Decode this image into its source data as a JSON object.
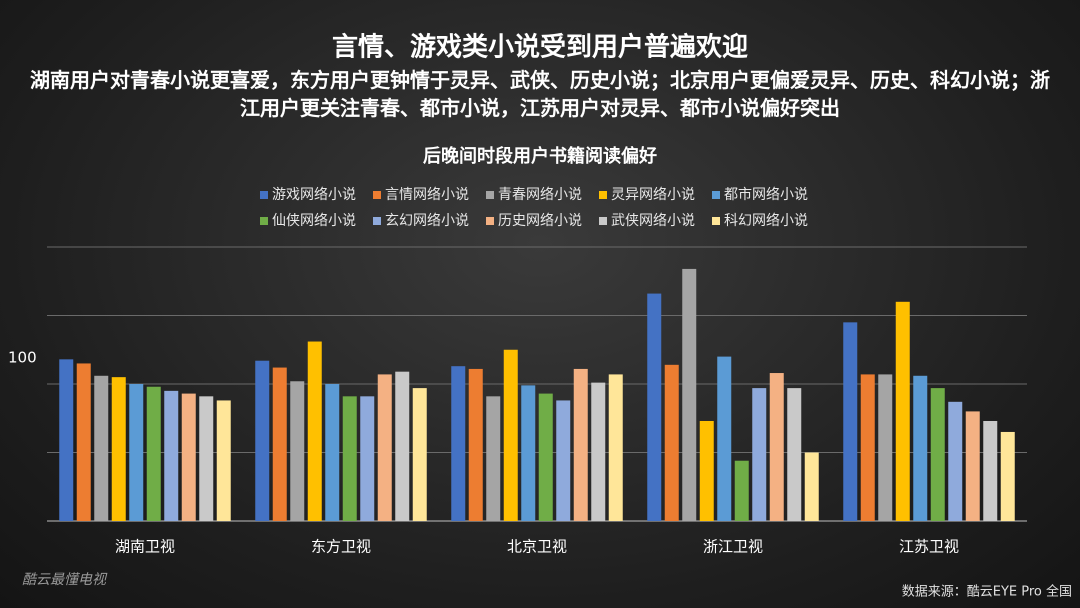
{
  "title": "言情、游戏类小说受到用户普遍欢迎",
  "subtitle": "湖南用户对青春小说更喜爱，东方用户更钟情于灵异、武侠、历史小说；北京用户更偏爱灵异、历史、科幻小说；浙江用户更关注青春、都市小说，江苏用户对灵异、都市小说偏好突出",
  "watermark": "酷云最懂电视",
  "source": "数据来源：酷云EYE Pro  全国",
  "chart_data": {
    "type": "bar",
    "title": "后晚间时段用户书籍阅读偏好",
    "categories": [
      "湖南卫视",
      "东方卫视",
      "北京卫视",
      "浙江卫视",
      "江苏卫视"
    ],
    "series": [
      {
        "name": "游戏网络小说",
        "color": "#4472c4",
        "values": [
          118,
          117,
          113,
          166,
          145
        ]
      },
      {
        "name": "言情网络小说",
        "color": "#ed7d31",
        "values": [
          115,
          112,
          111,
          114,
          107
        ]
      },
      {
        "name": "青春网络小说",
        "color": "#a5a5a5",
        "values": [
          106,
          102,
          91,
          184,
          107
        ]
      },
      {
        "name": "灵异网络小说",
        "color": "#ffc000",
        "values": [
          105,
          131,
          125,
          73,
          160
        ]
      },
      {
        "name": "都市网络小说",
        "color": "#5b9bd5",
        "values": [
          100,
          100,
          99,
          120,
          106
        ]
      },
      {
        "name": "仙侠网络小说",
        "color": "#70ad47",
        "values": [
          98,
          91,
          93,
          44,
          97
        ]
      },
      {
        "name": "玄幻网络小说",
        "color": "#8faadc",
        "values": [
          95,
          91,
          88,
          97,
          87
        ]
      },
      {
        "name": "历史网络小说",
        "color": "#f4b183",
        "values": [
          93,
          107,
          111,
          108,
          80
        ]
      },
      {
        "name": "武侠网络小说",
        "color": "#c9c9c9",
        "values": [
          91,
          109,
          101,
          97,
          73
        ]
      },
      {
        "name": "科幻网络小说",
        "color": "#ffe699",
        "values": [
          88,
          97,
          107,
          50,
          65
        ]
      }
    ],
    "ylim": [
      0,
      200
    ],
    "yticks": [
      100
    ],
    "ygrid": [
      50,
      100,
      150,
      200
    ],
    "grid": true,
    "legend": "top"
  }
}
